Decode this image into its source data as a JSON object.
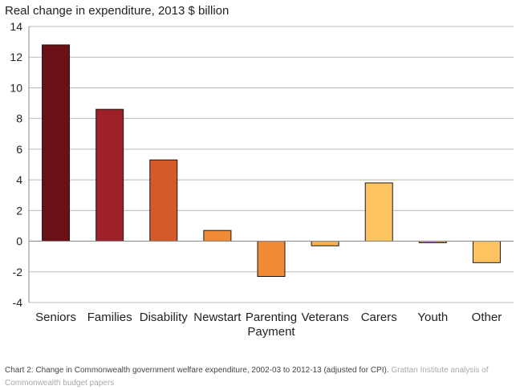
{
  "chart_data": {
    "type": "bar",
    "title": "Real change in expenditure, 2013 $ billion",
    "categories": [
      "Seniors",
      "Families",
      "Disability",
      "Newstart",
      "Parenting Payment",
      "Veterans",
      "Carers",
      "Youth",
      "Other"
    ],
    "category_lines": [
      [
        "Seniors"
      ],
      [
        "Families"
      ],
      [
        "Disability"
      ],
      [
        "Newstart"
      ],
      [
        "Parenting",
        "Payment"
      ],
      [
        "Veterans"
      ],
      [
        "Carers"
      ],
      [
        "Youth"
      ],
      [
        "Other"
      ]
    ],
    "values": [
      12.8,
      8.6,
      5.3,
      0.7,
      -2.3,
      -0.3,
      3.8,
      -0.1,
      -1.4
    ],
    "colors": [
      "#6b1016",
      "#9e2029",
      "#d55a2a",
      "#f08a35",
      "#f08a35",
      "#f7b24e",
      "#fcc35e",
      "#f7b24e",
      "#fcc35e"
    ],
    "ylim": [
      -4,
      14
    ],
    "yticks": [
      14,
      12,
      10,
      8,
      6,
      4,
      2,
      0,
      -2,
      -4
    ],
    "xlabel": "",
    "ylabel": "",
    "grid": true
  },
  "caption": {
    "main": "Chart 2: Change in Commonwealth government welfare expenditure, 2002-03 to 2012-13 (adjusted for CPI).",
    "source": "Grattan Institute analysis of Commonwealth budget papers"
  }
}
